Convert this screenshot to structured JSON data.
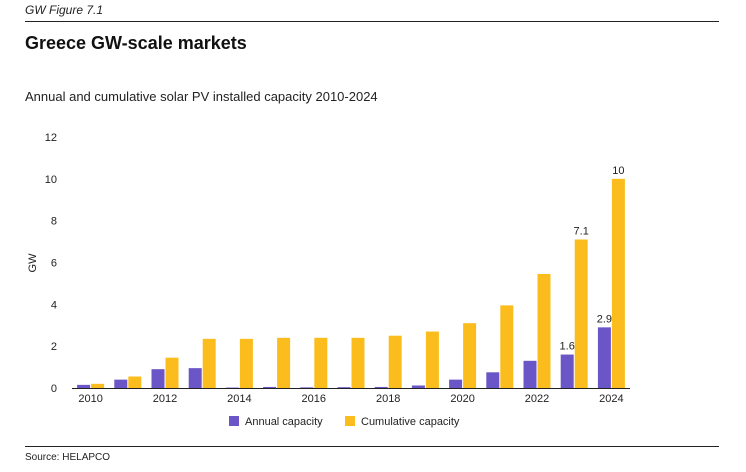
{
  "figure_label": "GW Figure 7.1",
  "title": "Greece GW-scale markets",
  "source": "Source: HELAPCO",
  "chart_data": {
    "type": "bar",
    "title": "Annual and cumulative solar PV installed capacity 2010-2024",
    "ylabel": "GW",
    "xlabel": "",
    "ylim": [
      0,
      12
    ],
    "yticks": [
      "0",
      "2",
      "4",
      "6",
      "8",
      "10",
      "12"
    ],
    "categories": [
      "2010",
      "2011",
      "2012",
      "2013",
      "2014",
      "2015",
      "2016",
      "2017",
      "2018",
      "2019",
      "2020",
      "2021",
      "2022",
      "2023",
      "2024"
    ],
    "xtick_labels": [
      "2010",
      "",
      "2012",
      "",
      "2014",
      "",
      "2016",
      "",
      "2018",
      "",
      "2020",
      "",
      "2022",
      "",
      "2024"
    ],
    "series": [
      {
        "name": "Annual capacity",
        "color": "#6b56c7",
        "values": [
          0.15,
          0.4,
          0.9,
          0.95,
          0.02,
          0.05,
          0.03,
          0.04,
          0.05,
          0.12,
          0.4,
          0.75,
          1.3,
          1.6,
          2.9
        ],
        "labels": [
          "",
          "",
          "",
          "",
          "",
          "",
          "",
          "",
          "",
          "",
          "",
          "",
          "",
          "1.6",
          "2.9"
        ]
      },
      {
        "name": "Cumulative capacity",
        "color": "#fbbd1e",
        "values": [
          0.2,
          0.55,
          1.45,
          2.35,
          2.35,
          2.4,
          2.4,
          2.4,
          2.5,
          2.7,
          3.1,
          3.95,
          5.45,
          7.1,
          10
        ],
        "labels": [
          "",
          "",
          "",
          "",
          "",
          "",
          "",
          "",
          "",
          "",
          "",
          "",
          "",
          "7.1",
          "10"
        ]
      }
    ],
    "grid": false,
    "legend_position": "bottom-center"
  }
}
